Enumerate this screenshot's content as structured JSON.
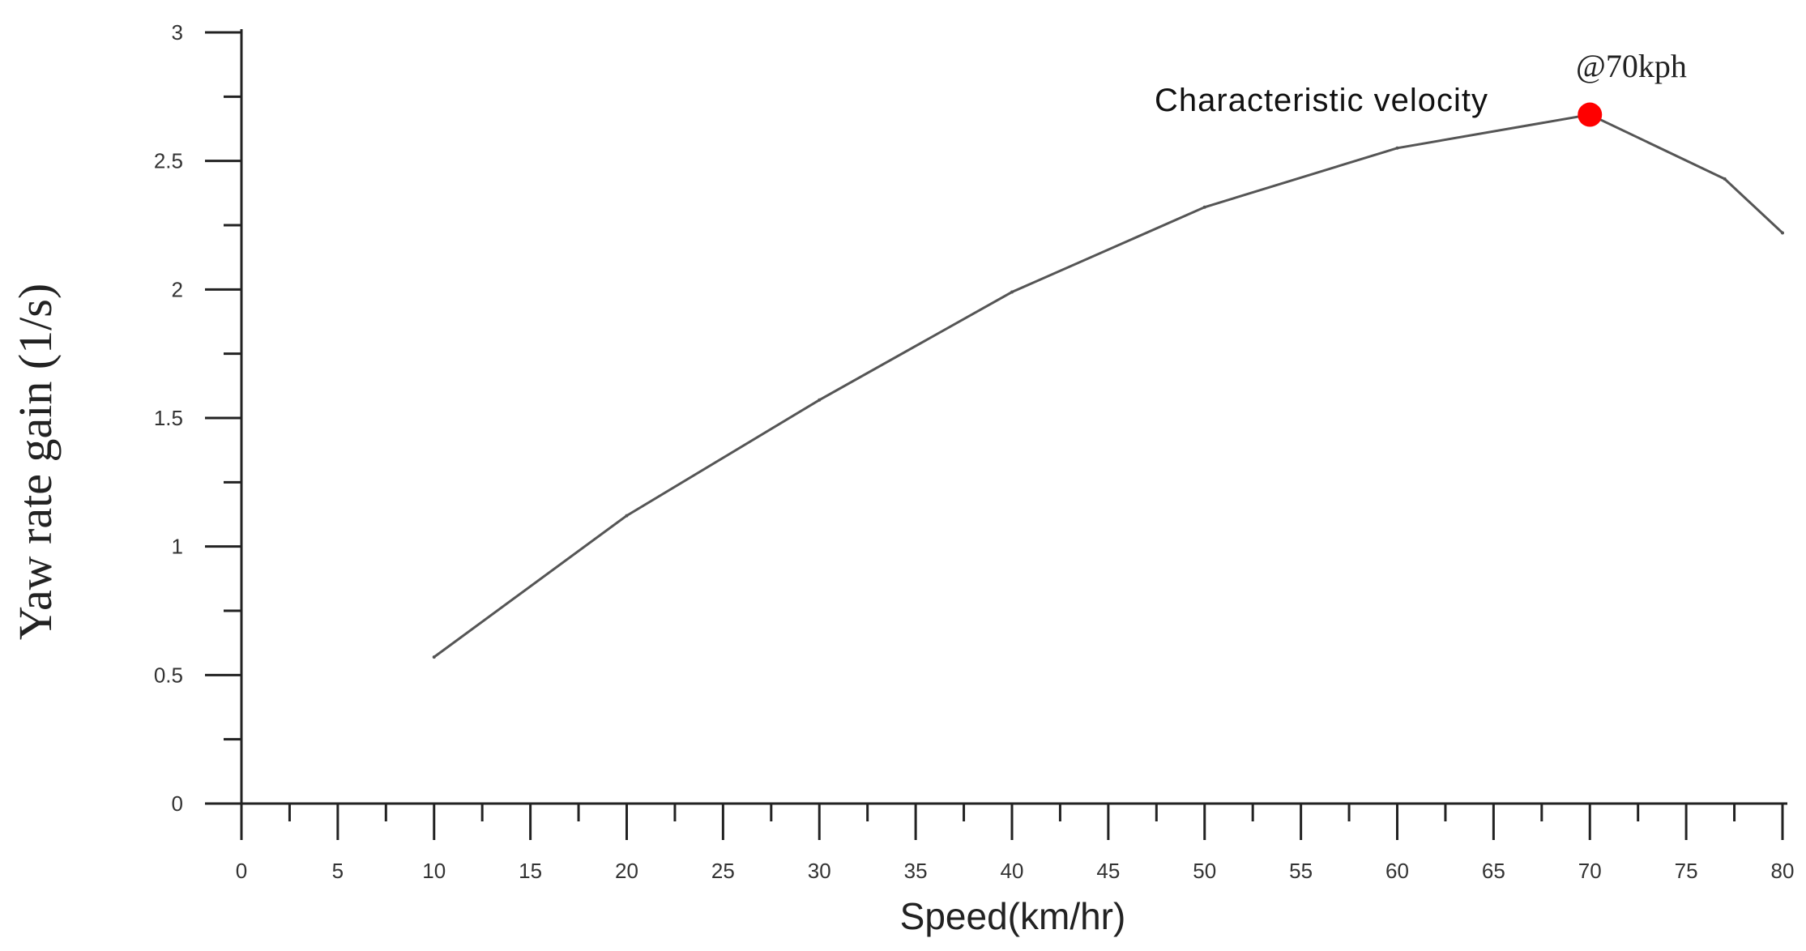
{
  "chart_data": {
    "type": "line",
    "title": "",
    "xlabel": "Speed(km/hr)",
    "ylabel": "Yaw rate gain (1/s)",
    "xlim": [
      0,
      80
    ],
    "ylim": [
      0,
      3
    ],
    "x_ticks": [
      "0",
      "5",
      "10",
      "15",
      "20",
      "25",
      "30",
      "35",
      "40",
      "45",
      "50",
      "55",
      "60",
      "65",
      "70",
      "75",
      "80"
    ],
    "y_ticks": [
      "0",
      "0.5",
      "1",
      "1.5",
      "2",
      "2.5",
      "3"
    ],
    "grid": false,
    "legend": "none",
    "line_color": "#555555",
    "x": [
      10,
      20,
      30,
      40,
      50,
      60,
      70,
      77,
      80
    ],
    "y": [
      0.57,
      1.12,
      1.57,
      1.99,
      2.32,
      2.55,
      2.68,
      2.43,
      2.22
    ],
    "highlight_point": {
      "x": 70,
      "y": 2.68,
      "color": "#ff0000"
    },
    "annotations": {
      "characteristic": "Characteristic velocity",
      "speed_note": "@70kph"
    }
  }
}
